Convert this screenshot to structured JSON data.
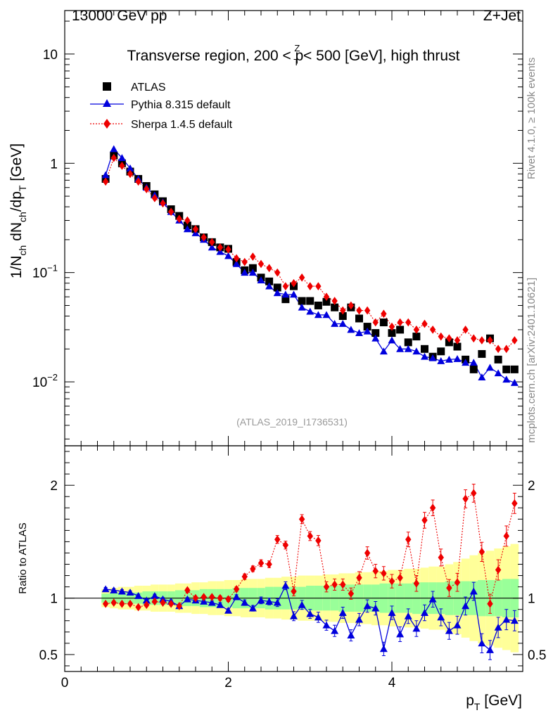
{
  "chart_data": {
    "type": "scatter",
    "header_left": "13000 GeV pp",
    "header_right": "Z+Jet",
    "title_parts": [
      "Transverse region, 200 < p",
      "Z",
      "T",
      " < 500 [GeV], high thrust"
    ],
    "ylabel_parts": [
      "1/N",
      "ch",
      " dN",
      "ch",
      "/dp",
      "T",
      " [GeV]"
    ],
    "xlabel_parts": [
      "p",
      "T",
      " [GeV]"
    ],
    "ratio_ylabel": "Ratio to ATLAS",
    "analysis_id": "(ATLAS_2019_I1736531)",
    "side_rivet": "Rivet 4.1.0, ≥ 100k events",
    "side_mcplots": "mcplots.cern.ch [arXiv:2401.10621]",
    "xlim": [
      0,
      5.6
    ],
    "ylim_log": [
      0.0026,
      25
    ],
    "ratio_ylim": [
      0.35,
      2.35
    ],
    "x_ticks": [
      0,
      2,
      4
    ],
    "y_tick_labels": [
      {
        "v": 10,
        "t": "10"
      },
      {
        "v": 1,
        "t": "1"
      },
      {
        "v": 0.1,
        "base": "10",
        "exp": "−1"
      },
      {
        "v": 0.01,
        "base": "10",
        "exp": "−2"
      }
    ],
    "ratio_ticks": [
      0.5,
      1,
      2
    ],
    "legend": [
      {
        "name": "ATLAS",
        "color": "#000000",
        "marker": "square"
      },
      {
        "name": "Pythia 8.315 default",
        "color": "#0000dd",
        "marker": "triangle"
      },
      {
        "name": "Sherpa 1.4.5 default",
        "color": "#ee0000",
        "marker": "diamond"
      }
    ],
    "x": [
      0.5,
      0.6,
      0.7,
      0.8,
      0.9,
      1.0,
      1.1,
      1.2,
      1.3,
      1.4,
      1.5,
      1.6,
      1.7,
      1.8,
      1.9,
      2.0,
      2.1,
      2.2,
      2.3,
      2.4,
      2.5,
      2.6,
      2.7,
      2.8,
      2.9,
      3.0,
      3.1,
      3.2,
      3.3,
      3.4,
      3.5,
      3.6,
      3.7,
      3.8,
      3.9,
      4.0,
      4.1,
      4.2,
      4.3,
      4.4,
      4.5,
      4.6,
      4.7,
      4.8,
      4.9,
      5.0,
      5.1,
      5.2,
      5.3,
      5.4,
      5.5
    ],
    "series": [
      {
        "name": "ATLAS",
        "values": [
          0.72,
          1.18,
          1.0,
          0.84,
          0.72,
          0.62,
          0.52,
          0.45,
          0.38,
          0.33,
          0.27,
          0.25,
          0.21,
          0.19,
          0.17,
          0.165,
          0.125,
          0.105,
          0.11,
          0.09,
          0.083,
          0.073,
          0.057,
          0.075,
          0.055,
          0.055,
          0.05,
          0.054,
          0.048,
          0.04,
          0.048,
          0.038,
          0.032,
          0.028,
          0.035,
          0.028,
          0.03,
          0.023,
          0.026,
          0.02,
          0.017,
          0.019,
          0.023,
          0.021,
          0.016,
          0.013,
          0.018,
          0.025,
          0.016,
          0.013,
          0.013
        ]
      },
      {
        "name": "Pythia 8.315 default",
        "values": [
          0.78,
          1.35,
          1.12,
          0.9,
          0.72,
          0.6,
          0.51,
          0.44,
          0.36,
          0.3,
          0.25,
          0.23,
          0.2,
          0.17,
          0.155,
          0.142,
          0.12,
          0.1,
          0.1,
          0.085,
          0.075,
          0.065,
          0.063,
          0.063,
          0.048,
          0.044,
          0.041,
          0.041,
          0.034,
          0.034,
          0.03,
          0.028,
          0.029,
          0.025,
          0.019,
          0.024,
          0.02,
          0.02,
          0.019,
          0.017,
          0.0165,
          0.0155,
          0.016,
          0.0162,
          0.015,
          0.015,
          0.011,
          0.0135,
          0.012,
          0.0105,
          0.0098
        ]
      },
      {
        "name": "Sherpa 1.4.5 default",
        "values": [
          0.68,
          1.12,
          0.95,
          0.8,
          0.68,
          0.58,
          0.48,
          0.43,
          0.36,
          0.31,
          0.3,
          0.25,
          0.21,
          0.19,
          0.17,
          0.163,
          0.135,
          0.125,
          0.14,
          0.12,
          0.11,
          0.1,
          0.075,
          0.08,
          0.09,
          0.075,
          0.075,
          0.06,
          0.055,
          0.045,
          0.05,
          0.045,
          0.045,
          0.035,
          0.042,
          0.032,
          0.035,
          0.035,
          0.03,
          0.034,
          0.03,
          0.026,
          0.025,
          0.024,
          0.03,
          0.025,
          0.024,
          0.024,
          0.02,
          0.02,
          0.024
        ]
      }
    ],
    "ratios": [
      {
        "name": "Pythia 8.315 default",
        "values": [
          1.08,
          1.07,
          1.06,
          1.05,
          1.02,
          0.98,
          1.02,
          0.99,
          0.97,
          0.93,
          0.99,
          0.98,
          0.97,
          0.96,
          0.94,
          0.89,
          1.01,
          0.96,
          0.91,
          0.98,
          0.97,
          0.96,
          1.11,
          0.84,
          0.94,
          0.86,
          0.83,
          0.76,
          0.71,
          0.87,
          0.67,
          0.81,
          0.93,
          0.91,
          0.55,
          0.87,
          0.68,
          0.84,
          0.73,
          0.87,
          0.99,
          0.83,
          0.71,
          0.76,
          0.93,
          1.06,
          0.6,
          0.54,
          0.74,
          0.81,
          0.8
        ]
      },
      {
        "name": "Sherpa 1.4.5 default",
        "values": [
          0.95,
          0.96,
          0.95,
          0.95,
          0.92,
          0.94,
          0.97,
          0.96,
          0.95,
          0.93,
          1.07,
          1.0,
          1.01,
          1.01,
          1.0,
          0.99,
          1.08,
          1.19,
          1.26,
          1.31,
          1.3,
          1.52,
          1.47,
          1.06,
          1.7,
          1.55,
          1.51,
          1.1,
          1.12,
          1.12,
          1.04,
          1.18,
          1.4,
          1.24,
          1.22,
          1.15,
          1.18,
          1.52,
          1.13,
          1.69,
          1.8,
          1.36,
          1.09,
          1.14,
          1.88,
          1.93,
          1.41,
          0.95,
          1.25,
          1.55,
          1.84
        ]
      }
    ],
    "ratio_errors": [
      0.015,
      0.015,
      0.015,
      0.015,
      0.015,
      0.015,
      0.015,
      0.015,
      0.015,
      0.015,
      0.015,
      0.015,
      0.015,
      0.015,
      0.02,
      0.02,
      0.02,
      0.025,
      0.025,
      0.03,
      0.03,
      0.035,
      0.035,
      0.04,
      0.04,
      0.04,
      0.045,
      0.045,
      0.05,
      0.05,
      0.05,
      0.055,
      0.055,
      0.06,
      0.06,
      0.06,
      0.065,
      0.065,
      0.07,
      0.07,
      0.07,
      0.075,
      0.075,
      0.08,
      0.08,
      0.08,
      0.085,
      0.085,
      0.09,
      0.09,
      0.09
    ],
    "band_green_halfwidth": [
      0.04,
      0.05,
      0.05,
      0.05,
      0.05,
      0.06,
      0.06,
      0.06,
      0.06,
      0.07,
      0.07,
      0.07,
      0.08,
      0.08,
      0.08,
      0.08,
      0.09,
      0.09,
      0.09,
      0.09,
      0.1,
      0.1,
      0.1,
      0.1,
      0.1,
      0.11,
      0.11,
      0.11,
      0.11,
      0.12,
      0.12,
      0.12,
      0.12,
      0.12,
      0.13,
      0.13,
      0.13,
      0.13,
      0.14,
      0.14,
      0.14,
      0.14,
      0.15,
      0.15,
      0.15,
      0.15,
      0.16,
      0.16,
      0.16,
      0.17,
      0.17
    ],
    "band_yellow_halfwidth": [
      0.08,
      0.09,
      0.1,
      0.1,
      0.11,
      0.11,
      0.12,
      0.12,
      0.12,
      0.13,
      0.13,
      0.14,
      0.14,
      0.15,
      0.15,
      0.16,
      0.16,
      0.17,
      0.17,
      0.17,
      0.18,
      0.18,
      0.19,
      0.19,
      0.2,
      0.2,
      0.2,
      0.21,
      0.21,
      0.22,
      0.22,
      0.23,
      0.23,
      0.24,
      0.24,
      0.25,
      0.25,
      0.26,
      0.26,
      0.27,
      0.28,
      0.28,
      0.3,
      0.32,
      0.35,
      0.38,
      0.4,
      0.42,
      0.44,
      0.46,
      0.48
    ]
  }
}
